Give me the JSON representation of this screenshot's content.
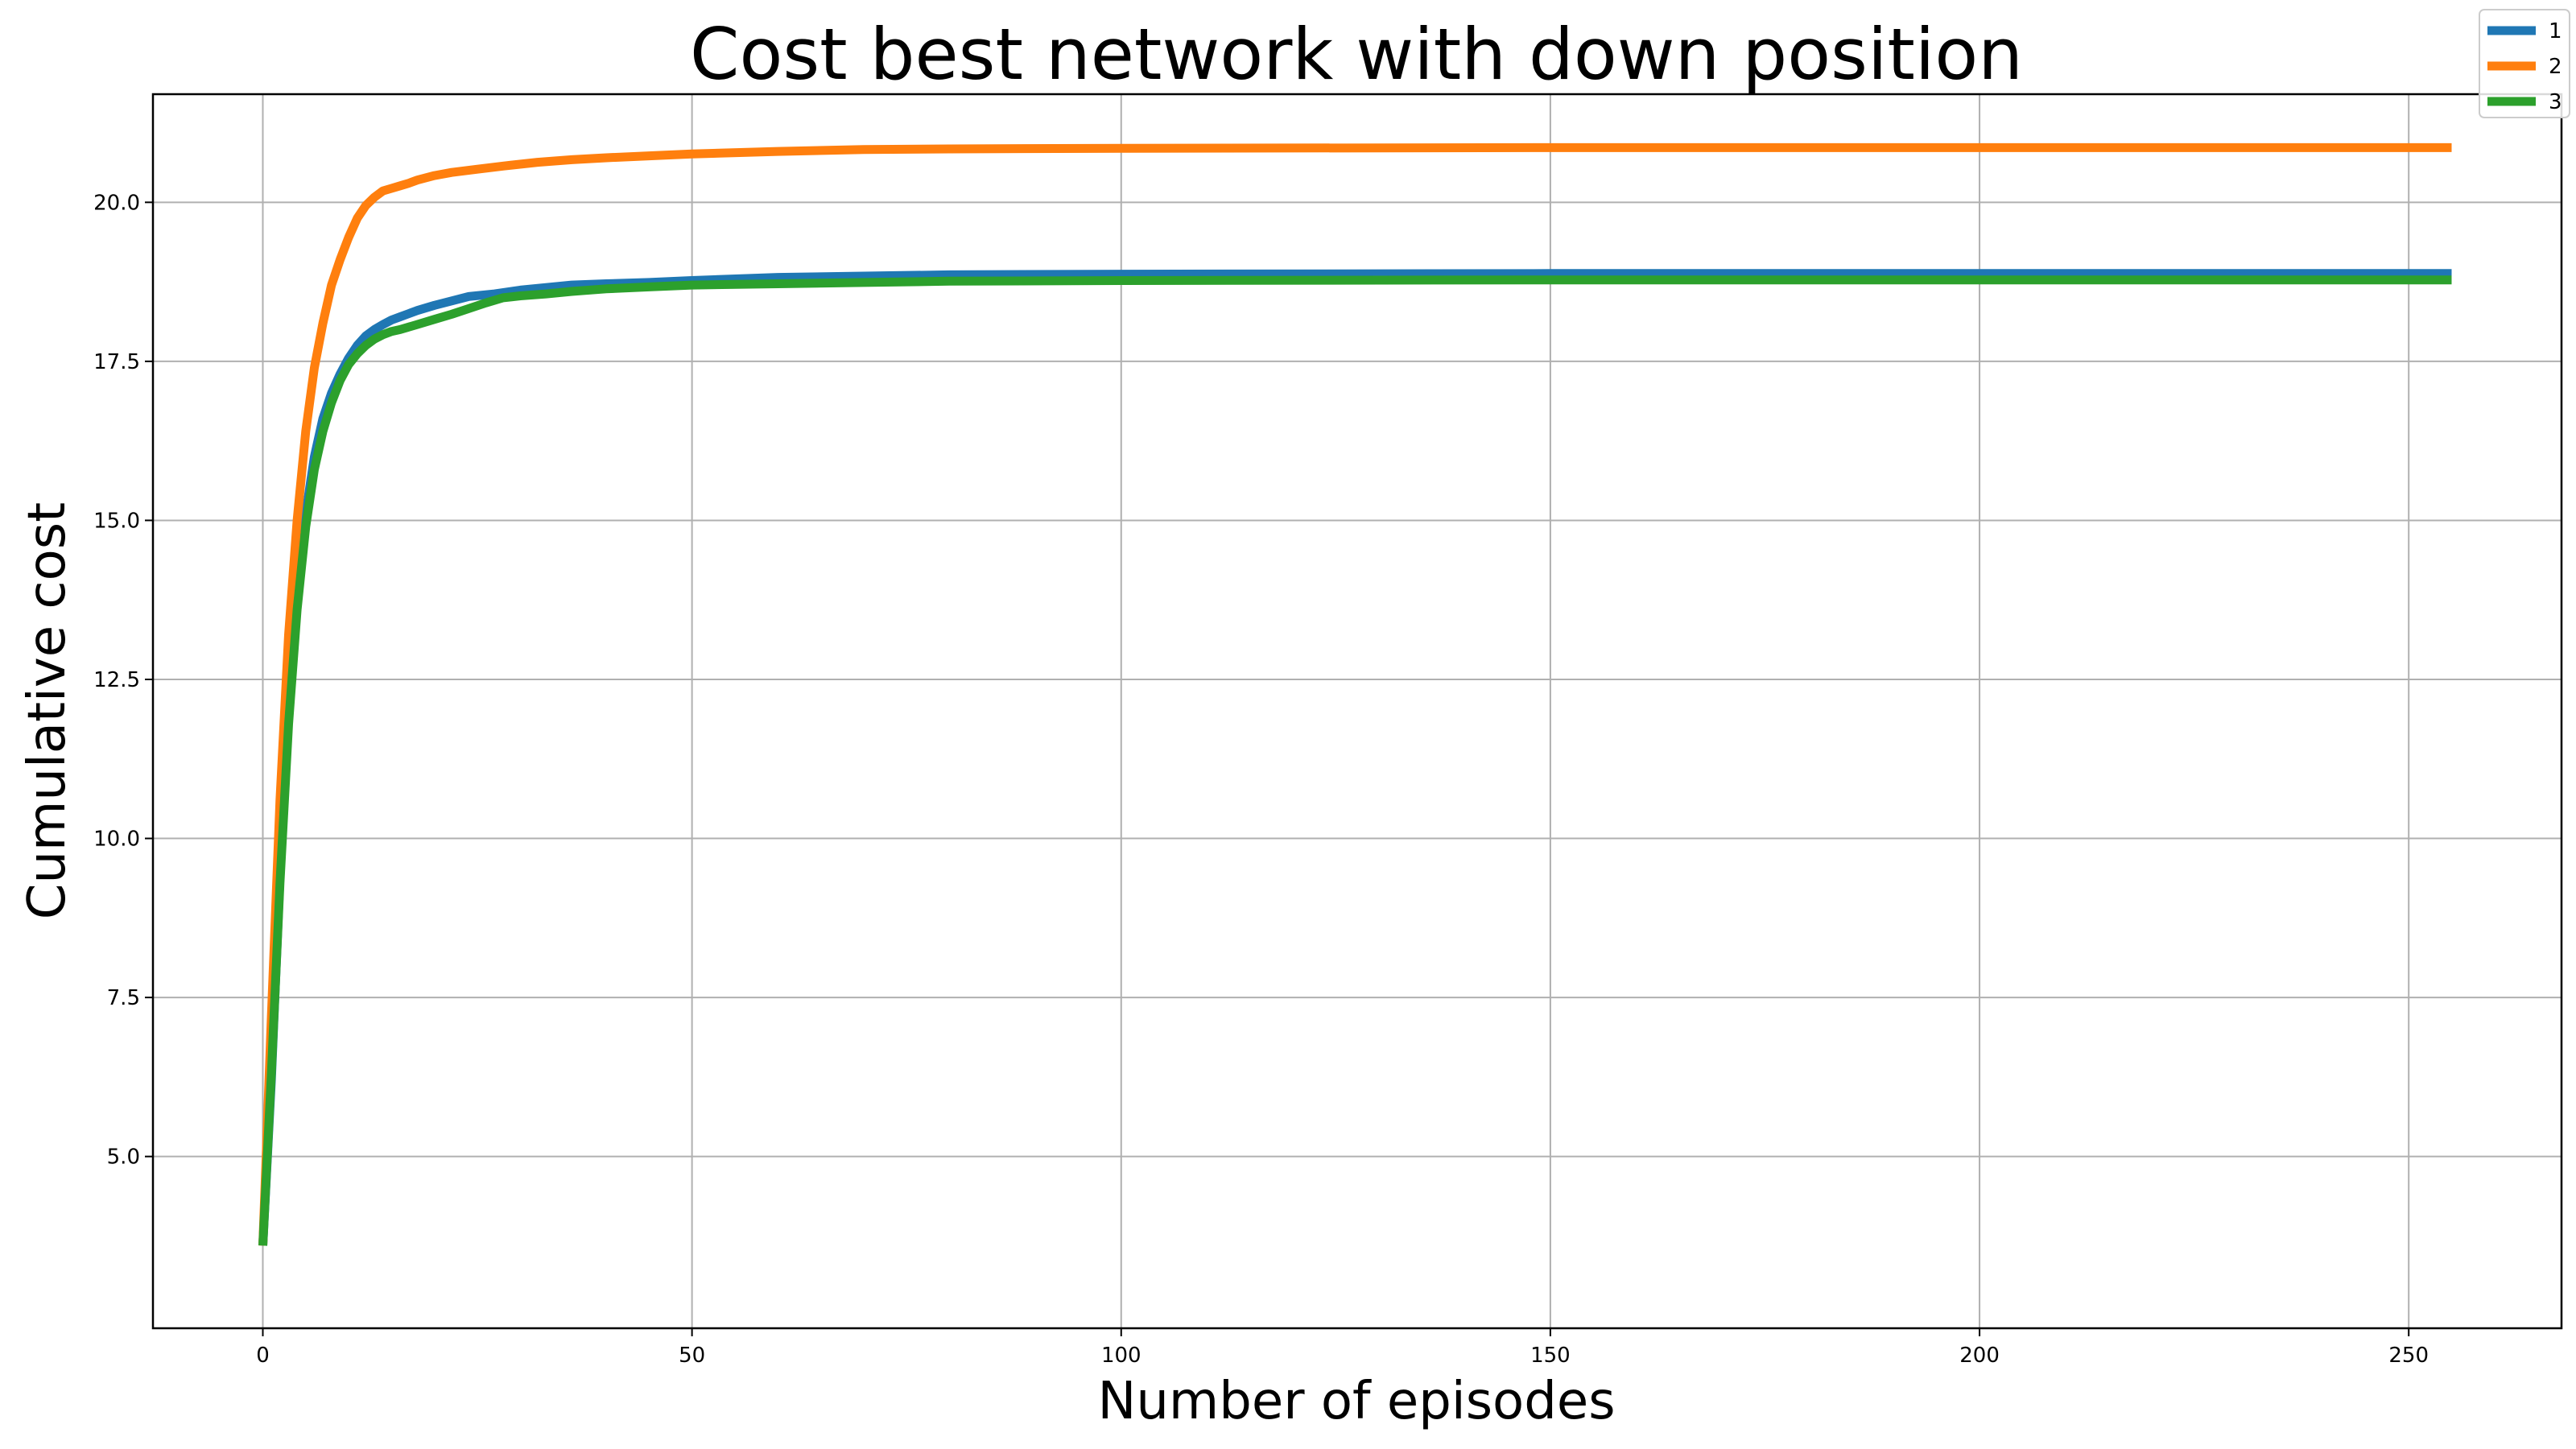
{
  "chart_data": {
    "type": "line",
    "title": "Cost best network with down position",
    "xlabel": "Number of episodes",
    "ylabel": "Cumulative cost",
    "xlim": [
      -12.8,
      267.8
    ],
    "ylim": [
      2.3,
      21.7
    ],
    "xticks": [
      0,
      50,
      100,
      150,
      200,
      250
    ],
    "yticks": [
      5.0,
      7.5,
      10.0,
      12.5,
      15.0,
      17.5,
      20.0
    ],
    "grid": true,
    "legend_position": "top-right",
    "series": [
      {
        "name": "1",
        "color": "#1f77b4",
        "x": [
          0,
          1,
          2,
          3,
          4,
          5,
          6,
          7,
          8,
          9,
          10,
          11,
          12,
          13,
          14,
          15,
          16,
          17,
          18,
          20,
          22,
          24,
          27,
          30,
          33,
          36,
          40,
          45,
          50,
          60,
          70,
          80,
          100,
          150,
          200,
          255
        ],
        "y": [
          3.6,
          6.2,
          9.4,
          11.9,
          13.8,
          15.1,
          16.0,
          16.6,
          17.0,
          17.3,
          17.55,
          17.75,
          17.9,
          18.0,
          18.08,
          18.15,
          18.2,
          18.25,
          18.3,
          18.38,
          18.45,
          18.52,
          18.56,
          18.62,
          18.66,
          18.7,
          18.72,
          18.74,
          18.77,
          18.82,
          18.84,
          18.86,
          18.87,
          18.88,
          18.88,
          18.88
        ]
      },
      {
        "name": "2",
        "color": "#ff7f0e",
        "x": [
          0,
          1,
          2,
          3,
          4,
          5,
          6,
          7,
          8,
          9,
          10,
          11,
          12,
          13,
          14,
          15,
          16,
          17,
          18,
          20,
          22,
          25,
          28,
          32,
          36,
          40,
          45,
          50,
          60,
          70,
          80,
          100,
          150,
          200,
          255
        ],
        "y": [
          3.6,
          7.2,
          10.6,
          13.2,
          15.0,
          16.4,
          17.4,
          18.1,
          18.7,
          19.1,
          19.45,
          19.75,
          19.95,
          20.08,
          20.18,
          20.22,
          20.26,
          20.3,
          20.35,
          20.42,
          20.47,
          20.52,
          20.57,
          20.63,
          20.67,
          20.7,
          20.73,
          20.76,
          20.8,
          20.83,
          20.84,
          20.85,
          20.86,
          20.86,
          20.86
        ]
      },
      {
        "name": "3",
        "color": "#2ca02c",
        "x": [
          0,
          1,
          2,
          3,
          4,
          5,
          6,
          7,
          8,
          9,
          10,
          11,
          12,
          13,
          14,
          15,
          16,
          18,
          20,
          22,
          24,
          26,
          28,
          30,
          33,
          36,
          40,
          45,
          50,
          60,
          70,
          80,
          100,
          150,
          200,
          255
        ],
        "y": [
          3.6,
          6.3,
          9.3,
          11.8,
          13.6,
          14.9,
          15.8,
          16.4,
          16.85,
          17.2,
          17.45,
          17.62,
          17.75,
          17.85,
          17.92,
          17.97,
          18.0,
          18.08,
          18.16,
          18.24,
          18.33,
          18.42,
          18.5,
          18.53,
          18.56,
          18.6,
          18.64,
          18.67,
          18.7,
          18.72,
          18.74,
          18.76,
          18.77,
          18.78,
          18.78,
          18.78
        ]
      }
    ]
  }
}
